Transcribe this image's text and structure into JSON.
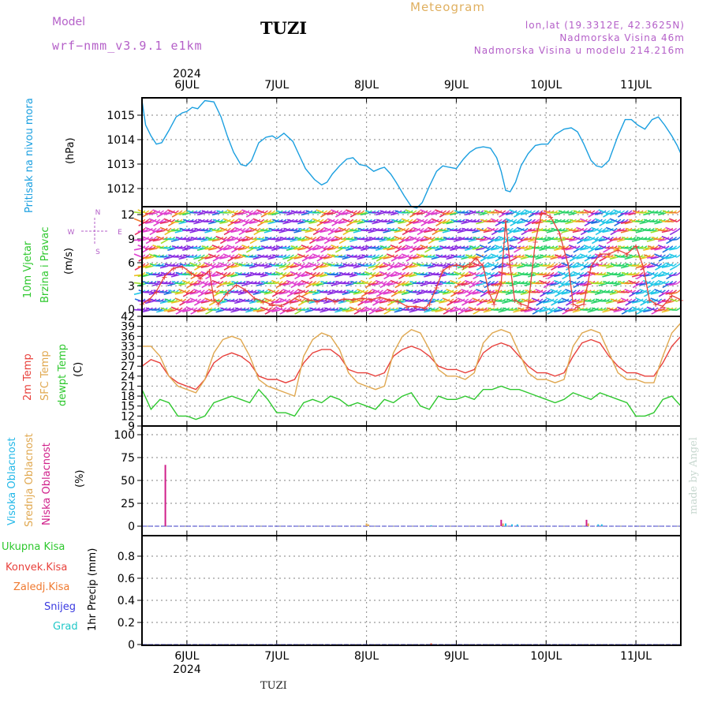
{
  "header": {
    "model_label": "Model",
    "model_name": "wrf−nmm_v3.9.1  e1km",
    "station": "TUZI",
    "meteogram": "Meteogram",
    "lonlat": "lon,lat (19.3312E, 42.3625N)",
    "elevation": "Nadmorska Visina 46m",
    "elevation_model": "Nadmorska Visina u modelu 214.216m"
  },
  "footer": {
    "station": "TUZI",
    "credit": "made by Angel"
  },
  "time_axis": {
    "year": "2024",
    "days": [
      "6JUL",
      "7JUL",
      "8JUL",
      "9JUL",
      "10JUL",
      "11JUL"
    ],
    "start_day": 5.5,
    "end_day": 11.5
  },
  "colors": {
    "pressure": "#1a9fe0",
    "temp2m": "#e8413c",
    "sfc": "#e0a850",
    "dewpt": "#2ec82e",
    "wind_barb_colors": [
      "#8a2be2",
      "#1f6fe0",
      "#23c8e8",
      "#2ad46a",
      "#a0e02a",
      "#f0c020",
      "#f07a30",
      "#e83060",
      "#e040d0"
    ],
    "cloud_high": "#23b8e8",
    "cloud_mid": "#e0a850",
    "cloud_low": "#d0208a",
    "precip_total": "#2ec82e",
    "precip_conv": "#e8413c",
    "precip_frz": "#f07a30",
    "precip_snow": "#3a3ae0",
    "precip_grad": "#20c8c8"
  },
  "panels": [
    {
      "labels": [
        "Pritisak na nivou mora"
      ],
      "unit": "(hPa)"
    },
    {
      "labels": [
        "10m Vjetar",
        "Brzina i Pravac"
      ],
      "unit": "(m/s)",
      "compass": {
        "n": "N",
        "s": "S",
        "e": "E",
        "w": "W"
      }
    },
    {
      "labels": [
        "2m Temp",
        "SFC Temp",
        "dewpt Temp"
      ],
      "unit": "(C)"
    },
    {
      "labels": [
        "Visoka Oblacnost",
        "Srednja Oblacnost",
        "Niska Oblacnost"
      ],
      "unit": "(%)"
    },
    {
      "labels": [
        "Ukupna Kisa",
        "Konvek.Kisa",
        "Zaledj.Kisa",
        "Snijeg",
        "Grad"
      ],
      "unit": "1hr Precip (mm)"
    }
  ],
  "chart_data": [
    {
      "type": "line",
      "title": "Pritisak na nivou mora",
      "ylabel": "(hPa)",
      "yticks": [
        "1012",
        "1013",
        "1014",
        "1015"
      ],
      "ylim": [
        1011.6,
        1015.6
      ],
      "grid": true,
      "series": [
        {
          "name": "Pritisak na nivou mora",
          "x": [
            5.5,
            5.54,
            5.6,
            5.66,
            5.72,
            5.8,
            5.88,
            5.95,
            6.0,
            6.06,
            6.12,
            6.2,
            6.3,
            6.38,
            6.45,
            6.52,
            6.6,
            6.66,
            6.72,
            6.8,
            6.88,
            6.95,
            7.0,
            7.08,
            7.18,
            7.25,
            7.32,
            7.42,
            7.5,
            7.56,
            7.62,
            7.7,
            7.78,
            7.85,
            7.92,
            8.0,
            8.08,
            8.15,
            8.2,
            8.27,
            8.33,
            8.42,
            8.5,
            8.56,
            8.62,
            8.7,
            8.78,
            8.85,
            8.92,
            9.0,
            9.08,
            9.15,
            9.22,
            9.3,
            9.38,
            9.45,
            9.5,
            9.55,
            9.6,
            9.66,
            9.72,
            9.8,
            9.88,
            9.95,
            10.02,
            10.1,
            10.2,
            10.28,
            10.35,
            10.42,
            10.5,
            10.56,
            10.62,
            10.7,
            10.8,
            10.88,
            10.95,
            11.02,
            11.1,
            11.18,
            11.25,
            11.32,
            11.4,
            11.46,
            11.5
          ],
          "y": [
            1015.5,
            1014.6,
            1014.2,
            1013.9,
            1013.95,
            1014.4,
            1014.9,
            1015.05,
            1015.1,
            1015.25,
            1015.2,
            1015.5,
            1015.45,
            1014.9,
            1014.2,
            1013.6,
            1013.15,
            1013.1,
            1013.3,
            1013.95,
            1014.15,
            1014.2,
            1014.1,
            1014.3,
            1014.0,
            1013.5,
            1013.0,
            1012.6,
            1012.4,
            1012.5,
            1012.8,
            1013.1,
            1013.35,
            1013.4,
            1013.15,
            1013.1,
            1012.9,
            1013.0,
            1013.05,
            1012.8,
            1012.5,
            1012.0,
            1011.6,
            1011.55,
            1011.75,
            1012.35,
            1012.9,
            1013.1,
            1013.05,
            1013.0,
            1013.35,
            1013.6,
            1013.75,
            1013.8,
            1013.75,
            1013.4,
            1012.9,
            1012.2,
            1012.15,
            1012.5,
            1013.1,
            1013.55,
            1013.85,
            1013.9,
            1013.9,
            1014.25,
            1014.45,
            1014.5,
            1014.35,
            1013.9,
            1013.3,
            1013.1,
            1013.05,
            1013.3,
            1014.2,
            1014.8,
            1014.8,
            1014.6,
            1014.45,
            1014.8,
            1014.9,
            1014.6,
            1014.2,
            1013.85,
            1013.55
          ]
        }
      ]
    },
    {
      "type": "line",
      "title": "10m Vjetar Brzina i Pravac",
      "ylabel": "(m/s)",
      "yticks": [
        "0",
        "3",
        "6",
        "9",
        "12"
      ],
      "ylim": [
        0,
        13.2
      ],
      "grid": true,
      "series": [
        {
          "name": "Brzina",
          "x": [
            5.5,
            5.58,
            5.66,
            5.75,
            5.85,
            5.95,
            6.05,
            6.15,
            6.25,
            6.3,
            6.35,
            6.45,
            6.55,
            6.65,
            6.75,
            6.85,
            6.95,
            7.05,
            7.15,
            7.25,
            7.35,
            7.45,
            7.55,
            7.65,
            7.75,
            7.85,
            7.95,
            8.05,
            8.15,
            8.25,
            8.35,
            8.45,
            8.55,
            8.65,
            8.7,
            8.78,
            8.85,
            8.92,
            9.0,
            9.08,
            9.15,
            9.22,
            9.3,
            9.36,
            9.42,
            9.5,
            9.55,
            9.6,
            9.65,
            9.72,
            9.8,
            9.88,
            9.95,
            10.05,
            10.15,
            10.25,
            10.3,
            10.35,
            10.42,
            10.5,
            10.6,
            10.7,
            10.8,
            10.9,
            11.0,
            11.08,
            11.15,
            11.22,
            11.3,
            11.4,
            11.5
          ],
          "y": [
            1.5,
            2.0,
            3.0,
            4.8,
            5.8,
            6.0,
            5.2,
            4.6,
            5.5,
            2.0,
            1.5,
            2.8,
            3.8,
            3.2,
            2.2,
            1.8,
            1.4,
            1.3,
            1.8,
            2.5,
            2.0,
            1.8,
            2.2,
            1.8,
            2.1,
            2.0,
            2.2,
            2.0,
            2.3,
            2.0,
            1.8,
            1.2,
            1.2,
            1.0,
            1.5,
            3.5,
            5.5,
            6.0,
            6.2,
            6.0,
            6.3,
            7.0,
            6.0,
            3.0,
            1.5,
            4.0,
            11.5,
            6.0,
            2.0,
            1.5,
            1.2,
            9.0,
            12.5,
            12.0,
            10.0,
            6.0,
            1.5,
            1.2,
            1.5,
            6.0,
            7.5,
            7.5,
            8.0,
            7.5,
            8.5,
            6.0,
            2.0,
            1.5,
            1.2,
            2.5,
            2.0
          ]
        }
      ]
    },
    {
      "type": "line",
      "title": "2m Temp / SFC Temp / dewpt Temp",
      "ylabel": "(C)",
      "yticks": [
        "9",
        "12",
        "15",
        "18",
        "21",
        "24",
        "27",
        "30",
        "33",
        "36",
        "39",
        "42"
      ],
      "ylim": [
        9,
        42
      ],
      "grid": true,
      "series": [
        {
          "name": "2m Temp",
          "x": [
            5.5,
            5.6,
            5.7,
            5.8,
            5.9,
            6.0,
            6.1,
            6.2,
            6.3,
            6.4,
            6.5,
            6.6,
            6.7,
            6.8,
            6.9,
            7.0,
            7.1,
            7.2,
            7.3,
            7.4,
            7.5,
            7.6,
            7.7,
            7.8,
            7.9,
            8.0,
            8.1,
            8.2,
            8.3,
            8.4,
            8.5,
            8.6,
            8.7,
            8.8,
            8.9,
            9.0,
            9.1,
            9.2,
            9.3,
            9.4,
            9.5,
            9.6,
            9.7,
            9.8,
            9.9,
            10.0,
            10.1,
            10.2,
            10.3,
            10.4,
            10.5,
            10.6,
            10.7,
            10.8,
            10.9,
            11.0,
            11.1,
            11.2,
            11.3,
            11.4,
            11.5
          ],
          "y": [
            27,
            29,
            28,
            24,
            22,
            21,
            20,
            23,
            28,
            30,
            31,
            30,
            28,
            24,
            23,
            23,
            22,
            23,
            28,
            31,
            32,
            32,
            30,
            26,
            25,
            25,
            24,
            25,
            30,
            32,
            33,
            32,
            30,
            27,
            26,
            26,
            25,
            26,
            31,
            33,
            34,
            33,
            30,
            27,
            25,
            25,
            24,
            25,
            30,
            34,
            35,
            34,
            30,
            27,
            25,
            25,
            24,
            24,
            28,
            33,
            36
          ]
        },
        {
          "name": "SFC Temp",
          "x": [
            5.5,
            5.6,
            5.7,
            5.8,
            5.9,
            6.0,
            6.1,
            6.2,
            6.3,
            6.4,
            6.5,
            6.6,
            6.7,
            6.8,
            6.9,
            7.0,
            7.1,
            7.2,
            7.3,
            7.4,
            7.5,
            7.6,
            7.7,
            7.8,
            7.9,
            8.0,
            8.1,
            8.2,
            8.3,
            8.4,
            8.5,
            8.6,
            8.7,
            8.8,
            8.9,
            9.0,
            9.1,
            9.2,
            9.3,
            9.4,
            9.5,
            9.6,
            9.7,
            9.8,
            9.9,
            10.0,
            10.1,
            10.2,
            10.3,
            10.4,
            10.5,
            10.6,
            10.7,
            10.8,
            10.9,
            11.0,
            11.1,
            11.2,
            11.3,
            11.4,
            11.5
          ],
          "y": [
            33,
            33,
            30,
            24,
            21,
            20,
            19,
            23,
            31,
            35,
            36,
            35,
            30,
            23,
            21,
            20,
            19,
            18,
            30,
            35,
            37,
            36,
            32,
            25,
            22,
            21,
            20,
            21,
            31,
            36,
            38,
            37,
            32,
            26,
            24,
            24,
            23,
            25,
            34,
            37,
            38,
            37,
            31,
            25,
            23,
            23,
            22,
            23,
            33,
            37,
            38,
            37,
            31,
            25,
            23,
            23,
            22,
            22,
            30,
            37,
            40
          ]
        },
        {
          "name": "dewpt Temp",
          "x": [
            5.5,
            5.6,
            5.7,
            5.8,
            5.9,
            6.0,
            6.1,
            6.2,
            6.3,
            6.4,
            6.5,
            6.6,
            6.7,
            6.8,
            6.9,
            7.0,
            7.1,
            7.2,
            7.3,
            7.4,
            7.5,
            7.6,
            7.7,
            7.8,
            7.9,
            8.0,
            8.1,
            8.2,
            8.3,
            8.4,
            8.5,
            8.6,
            8.7,
            8.8,
            8.9,
            9.0,
            9.1,
            9.2,
            9.3,
            9.4,
            9.5,
            9.6,
            9.7,
            9.8,
            9.9,
            10.0,
            10.1,
            10.2,
            10.3,
            10.4,
            10.5,
            10.6,
            10.7,
            10.8,
            10.9,
            11.0,
            11.1,
            11.2,
            11.3,
            11.4,
            11.5
          ],
          "y": [
            20,
            14,
            17,
            16,
            12,
            12,
            11,
            12,
            16,
            17,
            18,
            17,
            16,
            20,
            17,
            13,
            13,
            12,
            16,
            17,
            16,
            18,
            17,
            15,
            16,
            15,
            14,
            17,
            16,
            18,
            19,
            15,
            14,
            18,
            17,
            17,
            18,
            17,
            20,
            20,
            21,
            20,
            20,
            19,
            18,
            17,
            16,
            17,
            19,
            18,
            17,
            19,
            18,
            17,
            16,
            12,
            12,
            13,
            17,
            18,
            15
          ]
        }
      ]
    },
    {
      "type": "bar",
      "title": "Visoka / Srednja / Niska Oblacnost",
      "ylabel": "(%)",
      "yticks": [
        "0",
        "25",
        "50",
        "75",
        "100"
      ],
      "ylim": [
        0,
        107
      ],
      "grid": true,
      "series": [
        {
          "name": "Niska Oblacnost",
          "x": [
            5.76,
            9.5,
            10.45
          ],
          "values": [
            67,
            7,
            7
          ]
        },
        {
          "name": "Srednja Oblacnost",
          "x": [
            8.0,
            8.02,
            9.52,
            10.47
          ],
          "values": [
            3,
            2,
            3,
            3
          ]
        },
        {
          "name": "Visoka Oblacnost",
          "x": [
            8.72,
            9.55,
            9.62,
            9.68,
            10.58,
            10.62
          ],
          "values": [
            1,
            3,
            2,
            2,
            2,
            2
          ]
        }
      ]
    },
    {
      "type": "bar",
      "title": "1hr Precip",
      "ylabel": "1hr Precip (mm)",
      "yticks": [
        "0",
        "0.2",
        "0.4",
        "0.6",
        "0.8"
      ],
      "ylim": [
        0,
        0.98
      ],
      "grid": true,
      "series": [
        {
          "name": "Ukupna Kisa",
          "x": [
            8.72
          ],
          "values": [
            0.01
          ]
        },
        {
          "name": "Konvek.Kisa",
          "x": [
            8.72
          ],
          "values": [
            0.01
          ]
        }
      ]
    }
  ]
}
